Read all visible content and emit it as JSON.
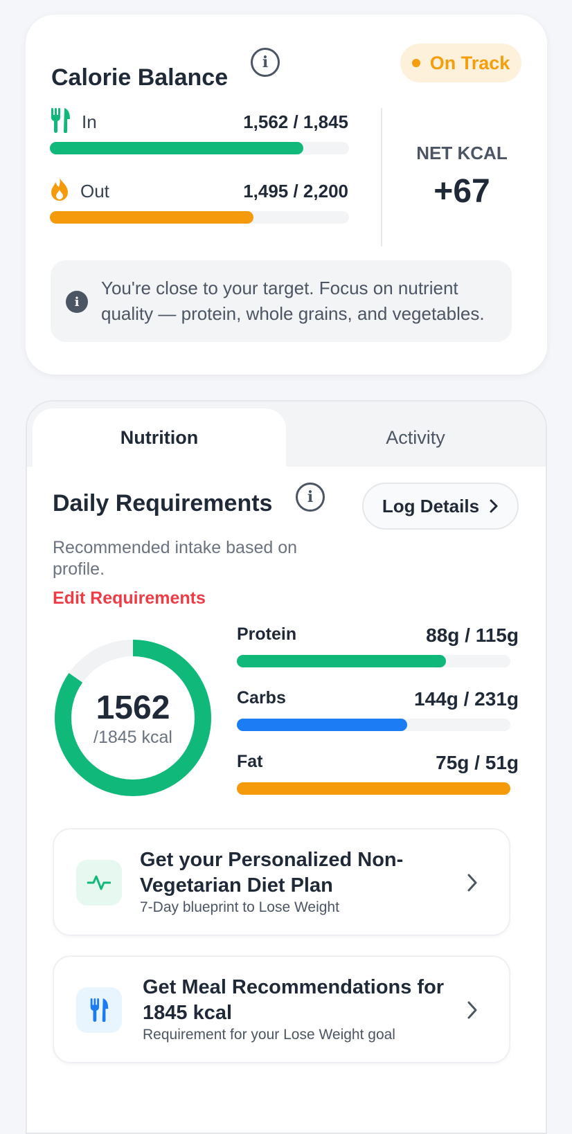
{
  "calorie_balance": {
    "title": "Calorie Balance",
    "status": "On Track",
    "in": {
      "label": "In",
      "value": "1,562 / 1,845",
      "progress": 0.847
    },
    "out": {
      "label": "Out",
      "value": "1,495 / 2,200",
      "progress": 0.68
    },
    "net_label": "NET KCAL",
    "net_value": "+67",
    "tip": "You're close to your target. Focus on nutrient quality — protein, whole grains, and vegetables."
  },
  "tabs": [
    {
      "label": "Nutrition",
      "active": true
    },
    {
      "label": "Activity",
      "active": false
    }
  ],
  "daily": {
    "title": "Daily Requirements",
    "log_button": "Log Details",
    "subtitle": "Recommended intake based on profile.",
    "edit_link": "Edit Requirements",
    "calories": {
      "value": "1562",
      "unit": "/1845 kcal",
      "progress": 0.847
    },
    "macros": [
      {
        "label": "Protein",
        "value": "88g / 115g",
        "progress": 0.765,
        "color": "#10b97a"
      },
      {
        "label": "Carbs",
        "value": "144g / 231g",
        "progress": 0.623,
        "color": "#1c7cf4"
      },
      {
        "label": "Fat",
        "value": "75g / 51g",
        "progress": 1.0,
        "color": "#f59a0a"
      }
    ]
  },
  "promos": [
    {
      "title": "Get your Personalized Non-Vegetarian Diet Plan",
      "subtitle": "7-Day blueprint to Lose Weight",
      "icon": "pulse-icon"
    },
    {
      "title": "Get Meal Recommendations for 1845 kcal",
      "subtitle": "Requirement for your Lose Weight goal",
      "icon": "fork-knife-icon"
    }
  ],
  "colors": {
    "green": "#10b97a",
    "orange": "#f59a0a",
    "blue": "#1c7cf4",
    "red": "#ef3b45"
  }
}
